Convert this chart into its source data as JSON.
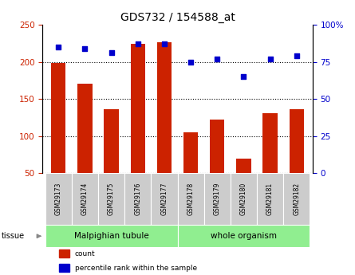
{
  "title": "GDS732 / 154588_at",
  "samples": [
    "GSM29173",
    "GSM29174",
    "GSM29175",
    "GSM29176",
    "GSM29177",
    "GSM29178",
    "GSM29179",
    "GSM29180",
    "GSM29181",
    "GSM29182"
  ],
  "counts": [
    198,
    170,
    136,
    224,
    226,
    105,
    122,
    70,
    131,
    136
  ],
  "percentile": [
    85,
    84,
    81,
    87,
    87,
    75,
    77,
    65,
    77,
    79
  ],
  "tissue_groups": [
    {
      "label": "Malpighian tubule",
      "start": 0,
      "end": 5,
      "color": "#90ee90"
    },
    {
      "label": "whole organism",
      "start": 5,
      "end": 10,
      "color": "#90ee90"
    }
  ],
  "ylim_left": [
    50,
    250
  ],
  "ylim_right": [
    0,
    100
  ],
  "yticks_left": [
    50,
    100,
    150,
    200,
    250
  ],
  "yticks_right": [
    0,
    25,
    50,
    75,
    100
  ],
  "bar_color": "#cc2200",
  "dot_color": "#0000cc",
  "bar_width": 0.55,
  "legend_items": [
    {
      "label": "count",
      "color": "#cc2200"
    },
    {
      "label": "percentile rank within the sample",
      "color": "#0000cc"
    }
  ],
  "tissue_label": "tissue",
  "background_color": "#ffffff",
  "plot_bg": "#ffffff",
  "sample_box_color": "#cccccc",
  "tissue_group1_n": 5,
  "tissue_group2_n": 5
}
